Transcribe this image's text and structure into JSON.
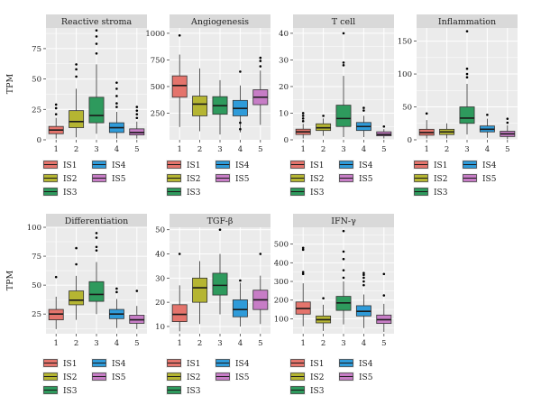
{
  "chart_data": [
    {
      "type": "box",
      "title": "Reactive stroma",
      "ylabel": "TPM",
      "categories": [
        "1",
        "2",
        "3",
        "4",
        "5"
      ],
      "ylim": [
        0,
        92
      ],
      "yticks": [
        0,
        25,
        50,
        75
      ],
      "boxes": [
        {
          "group": "IS1",
          "min": 1,
          "q1": 5,
          "median": 8,
          "q3": 11,
          "max": 18,
          "outliers": [
            21,
            26,
            29
          ]
        },
        {
          "group": "IS2",
          "min": 2,
          "q1": 10,
          "median": 15,
          "q3": 24,
          "max": 42,
          "outliers": [
            52,
            58,
            62
          ]
        },
        {
          "group": "IS3",
          "min": 5,
          "q1": 14,
          "median": 20,
          "q3": 35,
          "max": 62,
          "outliers": [
            71,
            79,
            85,
            90
          ]
        },
        {
          "group": "IS4",
          "min": 1,
          "q1": 6,
          "median": 10,
          "q3": 14,
          "max": 23,
          "outliers": [
            27,
            30,
            36,
            42,
            47
          ]
        },
        {
          "group": "IS5",
          "min": 1,
          "q1": 4,
          "median": 6,
          "q3": 9,
          "max": 15,
          "outliers": [
            18,
            21,
            24,
            27
          ]
        }
      ]
    },
    {
      "type": "box",
      "title": "Angiogenesis",
      "ylabel": "",
      "categories": [
        "1",
        "2",
        "3",
        "4",
        "5"
      ],
      "ylim": [
        0,
        1050
      ],
      "yticks": [
        250,
        500,
        750,
        1000
      ],
      "boxes": [
        {
          "group": "IS1",
          "min": 120,
          "q1": 400,
          "median": 510,
          "q3": 600,
          "max": 800,
          "outliers": [
            980
          ]
        },
        {
          "group": "IS2",
          "min": 80,
          "q1": 225,
          "median": 335,
          "q3": 410,
          "max": 670,
          "outliers": []
        },
        {
          "group": "IS3",
          "min": 50,
          "q1": 240,
          "median": 320,
          "q3": 405,
          "max": 560,
          "outliers": []
        },
        {
          "group": "IS4",
          "min": 70,
          "q1": 225,
          "median": 295,
          "q3": 370,
          "max": 510,
          "outliers": [
            100,
            160,
            640
          ]
        },
        {
          "group": "IS5",
          "min": 140,
          "q1": 330,
          "median": 400,
          "q3": 470,
          "max": 650,
          "outliers": [
            690,
            740,
            770
          ]
        }
      ]
    },
    {
      "type": "box",
      "title": "T cell",
      "ylabel": "",
      "categories": [
        "1",
        "2",
        "3",
        "4",
        "5"
      ],
      "ylim": [
        0,
        42
      ],
      "yticks": [
        0,
        10,
        20,
        30,
        40
      ],
      "boxes": [
        {
          "group": "IS1",
          "min": 0.5,
          "q1": 2,
          "median": 3,
          "q3": 4,
          "max": 6,
          "outliers": [
            7,
            8,
            9,
            10
          ]
        },
        {
          "group": "IS2",
          "min": 1.5,
          "q1": 3.5,
          "median": 4.5,
          "q3": 6,
          "max": 8,
          "outliers": [
            9
          ]
        },
        {
          "group": "IS3",
          "min": 1,
          "q1": 5,
          "median": 8,
          "q3": 13,
          "max": 24,
          "outliers": [
            28,
            29,
            40
          ]
        },
        {
          "group": "IS4",
          "min": 1,
          "q1": 3.5,
          "median": 5,
          "q3": 6.5,
          "max": 9,
          "outliers": [
            11,
            12
          ]
        },
        {
          "group": "IS5",
          "min": 0.5,
          "q1": 1.5,
          "median": 2,
          "q3": 3,
          "max": 4,
          "outliers": [
            5
          ]
        }
      ]
    },
    {
      "type": "box",
      "title": "Inflammation",
      "ylabel": "",
      "categories": [
        "1",
        "2",
        "3",
        "4",
        "5"
      ],
      "ylim": [
        0,
        170
      ],
      "yticks": [
        0,
        50,
        100,
        150
      ],
      "boxes": [
        {
          "group": "IS1",
          "min": 2,
          "q1": 7,
          "median": 11,
          "q3": 16,
          "max": 30,
          "outliers": [
            40
          ]
        },
        {
          "group": "IS2",
          "min": 2,
          "q1": 8,
          "median": 12,
          "q3": 16,
          "max": 25,
          "outliers": []
        },
        {
          "group": "IS3",
          "min": 8,
          "q1": 25,
          "median": 33,
          "q3": 50,
          "max": 85,
          "outliers": [
            95,
            100,
            108,
            165
          ]
        },
        {
          "group": "IS4",
          "min": 3,
          "q1": 12,
          "median": 16,
          "q3": 21,
          "max": 32,
          "outliers": [
            38
          ]
        },
        {
          "group": "IS5",
          "min": 1,
          "q1": 5,
          "median": 9,
          "q3": 13,
          "max": 22,
          "outliers": [
            26,
            32
          ]
        }
      ]
    },
    {
      "type": "box",
      "title": "Differentiation",
      "ylabel": "TPM",
      "categories": [
        "1",
        "2",
        "3",
        "4",
        "5"
      ],
      "ylim": [
        8,
        100
      ],
      "yticks": [
        25,
        50,
        75,
        100
      ],
      "boxes": [
        {
          "group": "IS1",
          "min": 12,
          "q1": 20,
          "median": 25,
          "q3": 29,
          "max": 40,
          "outliers": [
            57
          ]
        },
        {
          "group": "IS2",
          "min": 20,
          "q1": 33,
          "median": 37,
          "q3": 45,
          "max": 58,
          "outliers": [
            68,
            82
          ]
        },
        {
          "group": "IS3",
          "min": 25,
          "q1": 36,
          "median": 42,
          "q3": 53,
          "max": 70,
          "outliers": [
            80,
            83,
            91,
            95
          ]
        },
        {
          "group": "IS4",
          "min": 13,
          "q1": 21,
          "median": 25,
          "q3": 29,
          "max": 38,
          "outliers": [
            44,
            47
          ]
        },
        {
          "group": "IS5",
          "min": 12,
          "q1": 17,
          "median": 20,
          "q3": 24,
          "max": 32,
          "outliers": [
            45
          ]
        }
      ]
    },
    {
      "type": "box",
      "title": "TGF-β",
      "ylabel": "",
      "categories": [
        "1",
        "2",
        "3",
        "4",
        "5"
      ],
      "ylim": [
        7,
        51
      ],
      "yticks": [
        10,
        20,
        30,
        40,
        50
      ],
      "boxes": [
        {
          "group": "IS1",
          "min": 8,
          "q1": 12,
          "median": 15,
          "q3": 19,
          "max": 27,
          "outliers": [
            40
          ]
        },
        {
          "group": "IS2",
          "min": 11,
          "q1": 20,
          "median": 26,
          "q3": 30,
          "max": 37,
          "outliers": []
        },
        {
          "group": "IS3",
          "min": 15,
          "q1": 23,
          "median": 27,
          "q3": 32,
          "max": 40,
          "outliers": [
            50
          ]
        },
        {
          "group": "IS4",
          "min": 10,
          "q1": 14,
          "median": 17,
          "q3": 21,
          "max": 28,
          "outliers": [
            29
          ]
        },
        {
          "group": "IS5",
          "min": 11,
          "q1": 17,
          "median": 21,
          "q3": 25,
          "max": 31,
          "outliers": [
            40
          ]
        }
      ]
    },
    {
      "type": "box",
      "title": "IFN-γ",
      "ylabel": "",
      "categories": [
        "1",
        "2",
        "3",
        "4",
        "5"
      ],
      "ylim": [
        20,
        590
      ],
      "yticks": [
        100,
        200,
        300,
        400,
        500
      ],
      "boxes": [
        {
          "group": "IS1",
          "min": 60,
          "q1": 125,
          "median": 155,
          "q3": 190,
          "max": 290,
          "outliers": [
            340,
            350,
            470,
            480
          ]
        },
        {
          "group": "IS2",
          "min": 35,
          "q1": 78,
          "median": 95,
          "q3": 115,
          "max": 175,
          "outliers": [
            210
          ]
        },
        {
          "group": "IS3",
          "min": 70,
          "q1": 145,
          "median": 185,
          "q3": 220,
          "max": 300,
          "outliers": [
            320,
            360,
            420,
            460,
            570
          ]
        },
        {
          "group": "IS4",
          "min": 50,
          "q1": 115,
          "median": 140,
          "q3": 170,
          "max": 230,
          "outliers": [
            280,
            300,
            320,
            335,
            345
          ]
        },
        {
          "group": "IS5",
          "min": 30,
          "q1": 75,
          "median": 95,
          "q3": 120,
          "max": 180,
          "outliers": [
            225,
            340
          ]
        }
      ]
    }
  ],
  "legend": {
    "items": [
      "IS1",
      "IS2",
      "IS3",
      "IS4",
      "IS5"
    ],
    "colors": [
      "#e4746c",
      "#b5b532",
      "#2e9a5d",
      "#2f9bd9",
      "#c77dc6"
    ]
  },
  "style": {
    "panel_background": "#ebebeb",
    "strip_background": "#d9d9d9",
    "gridline_color": "#ffffff",
    "outlier_color": "#000000"
  }
}
